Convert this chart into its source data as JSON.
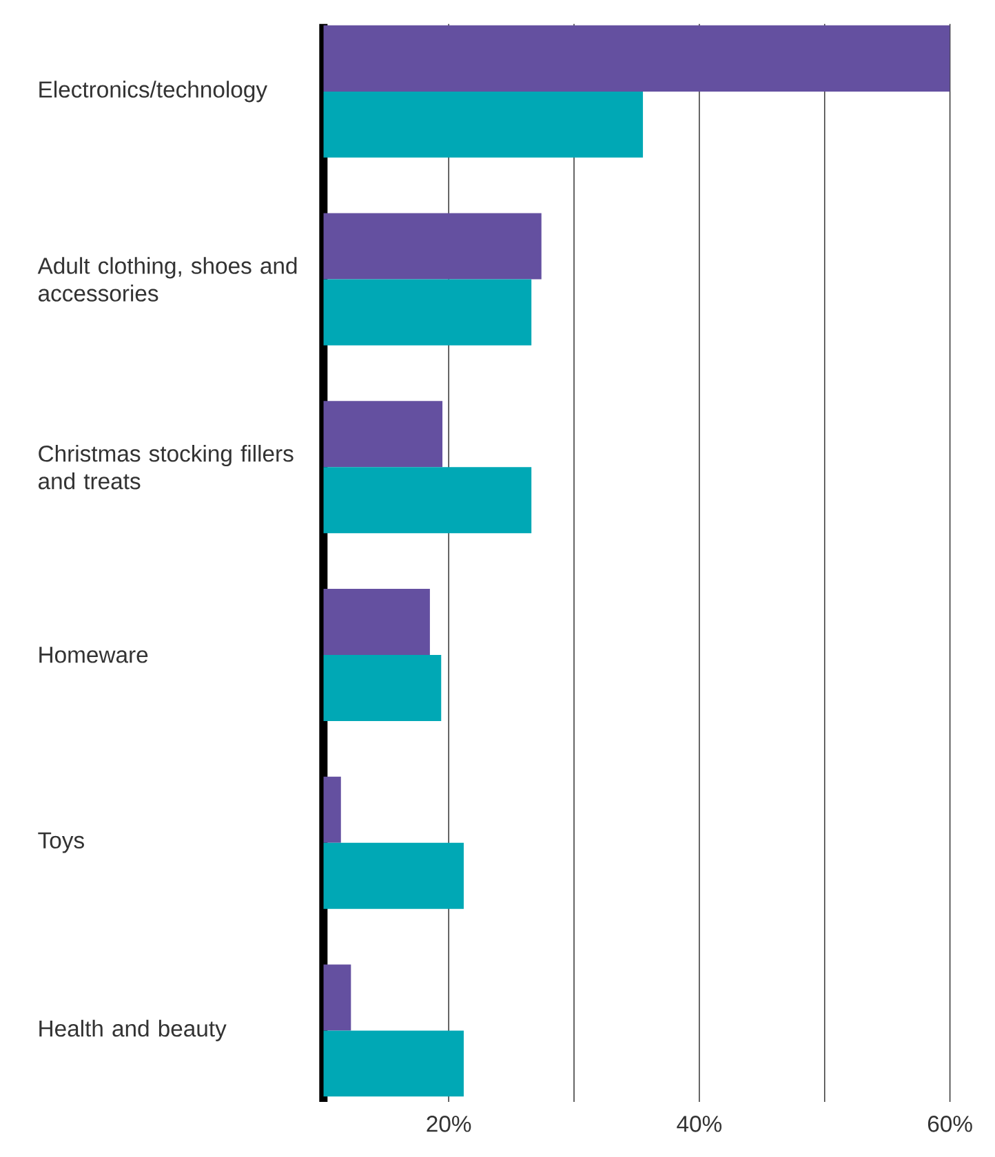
{
  "chart_data": {
    "type": "bar",
    "orientation": "horizontal",
    "categories": [
      "Electronics/technology",
      "Adult clothing, shoes and accessories",
      "Christmas stocking fillers and treats",
      "Homeware",
      "Toys",
      "Health and beauty"
    ],
    "series": [
      {
        "color": "#6450a0",
        "values": [
          60,
          27.4,
          19.5,
          18.5,
          11.4,
          12.2
        ]
      },
      {
        "color": "#00a8b5",
        "values": [
          35.5,
          26.6,
          26.6,
          19.4,
          21.2,
          21.2
        ]
      }
    ],
    "xlim": [
      10,
      60
    ],
    "xticks": [
      {
        "value": 20,
        "label": "20%"
      },
      {
        "value": 30,
        "label": null
      },
      {
        "value": 40,
        "label": "40%"
      },
      {
        "value": 50,
        "label": null
      },
      {
        "value": 60,
        "label": "60%"
      }
    ],
    "grid": "x"
  }
}
